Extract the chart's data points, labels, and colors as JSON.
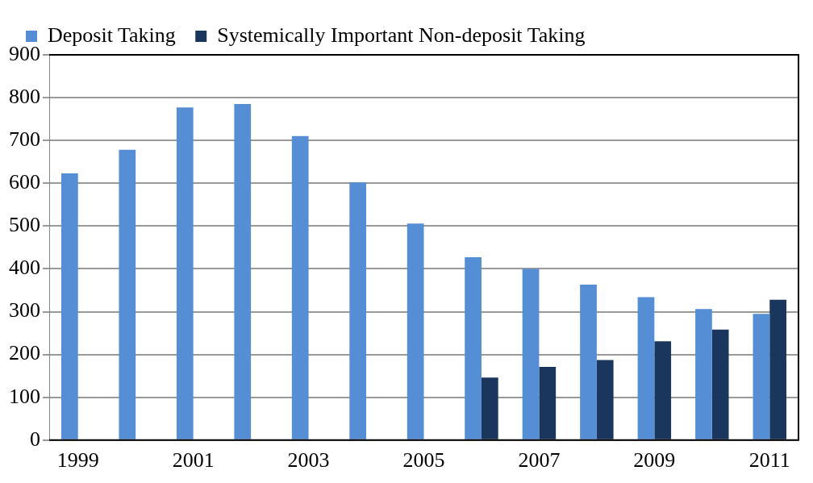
{
  "chart_data": {
    "type": "bar",
    "categories": [
      "1999",
      null,
      "2001",
      null,
      "2003",
      null,
      "2005",
      null,
      "2007",
      null,
      "2009",
      null,
      "2011"
    ],
    "series": [
      {
        "name": "Deposit Taking",
        "color": "#558ed5",
        "values": [
          623,
          678,
          777,
          785,
          710,
          602,
          506,
          427,
          400,
          363,
          334,
          306,
          295
        ]
      },
      {
        "name": "Systemically Important Non-deposit Taking",
        "color": "#1b365d",
        "values": [
          null,
          null,
          null,
          null,
          null,
          null,
          null,
          146,
          171,
          187,
          231,
          258,
          328
        ]
      }
    ],
    "ylim": [
      0,
      900
    ],
    "yticks": [
      0,
      100,
      200,
      300,
      400,
      500,
      600,
      700,
      800,
      900
    ],
    "grid": "y",
    "legend": "top left"
  }
}
